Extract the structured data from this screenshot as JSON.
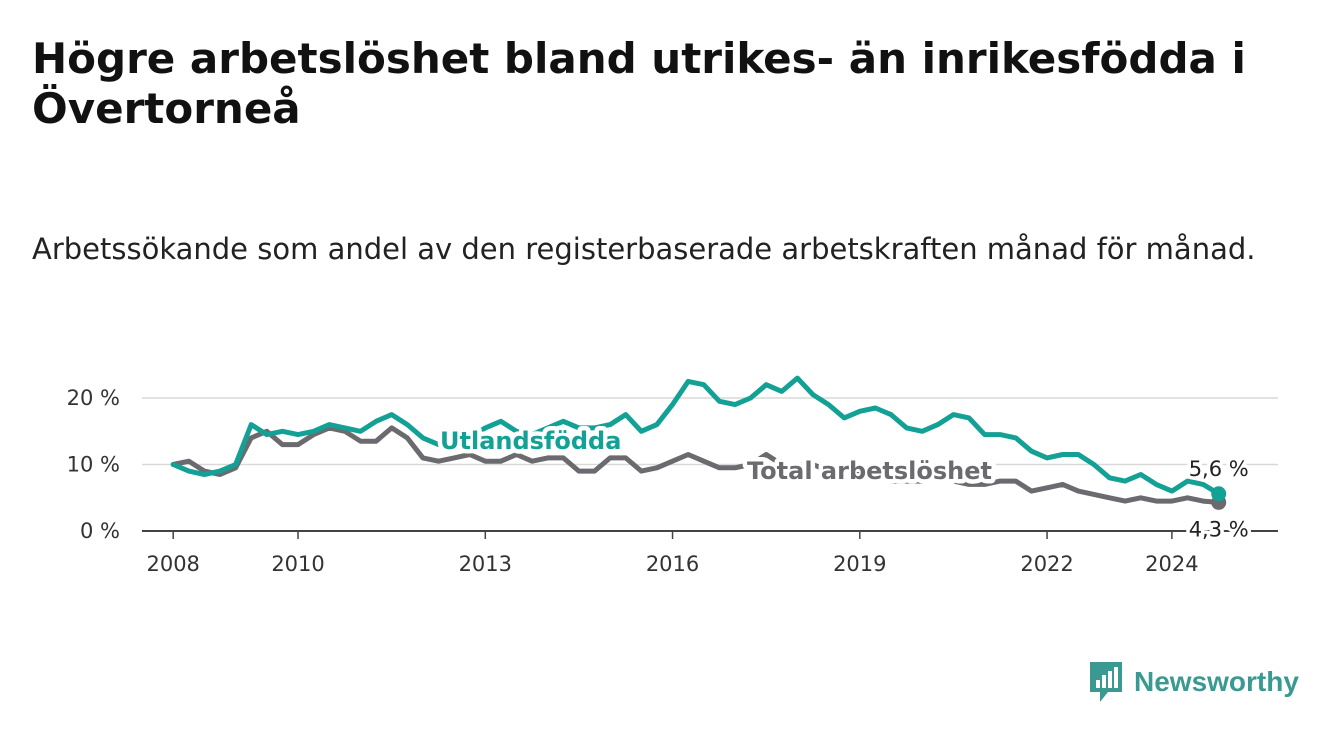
{
  "title": "Högre arbetslöshet bland utrikes- än inrikesfödda i Övertorneå",
  "subtitle": "Arbetssökande som andel av den registerbaserade arbetskraften månad för månad.",
  "brand": {
    "name": "Newsworthy",
    "icon": "bar-chart-speech-bubble-icon"
  },
  "chart_data": {
    "type": "line",
    "x_ticks": [
      "2008",
      "2010",
      "2013",
      "2016",
      "2019",
      "2022",
      "2024"
    ],
    "y_ticks": [
      "0 %",
      "10 %",
      "20 %"
    ],
    "ylim": [
      0,
      20
    ],
    "grid": true,
    "series": [
      {
        "name": "Utlandsfödda",
        "color": "#14a195",
        "end_label": "5,6 %",
        "points": [
          [
            "2008-01",
            10
          ],
          [
            "2008-04",
            9
          ],
          [
            "2008-07",
            8.5
          ],
          [
            "2008-10",
            9
          ],
          [
            "2009-01",
            10
          ],
          [
            "2009-04",
            16
          ],
          [
            "2009-07",
            14.5
          ],
          [
            "2009-10",
            15
          ],
          [
            "2010-01",
            14.5
          ],
          [
            "2010-04",
            15
          ],
          [
            "2010-07",
            16
          ],
          [
            "2010-10",
            15.5
          ],
          [
            "2011-01",
            15
          ],
          [
            "2011-04",
            16.5
          ],
          [
            "2011-07",
            17.5
          ],
          [
            "2011-10",
            16
          ],
          [
            "2012-01",
            14
          ],
          [
            "2012-04",
            13
          ],
          [
            "2012-07",
            13.5
          ],
          [
            "2012-10",
            14
          ],
          [
            "2013-01",
            15.5
          ],
          [
            "2013-04",
            16.5
          ],
          [
            "2013-07",
            15
          ],
          [
            "2013-10",
            14.5
          ],
          [
            "2014-01",
            15.5
          ],
          [
            "2014-04",
            16.5
          ],
          [
            "2014-07",
            15.5
          ],
          [
            "2014-10",
            15.5
          ],
          [
            "2015-01",
            16
          ],
          [
            "2015-04",
            17.5
          ],
          [
            "2015-07",
            15
          ],
          [
            "2015-10",
            16
          ],
          [
            "2016-01",
            19
          ],
          [
            "2016-04",
            22.5
          ],
          [
            "2016-07",
            22
          ],
          [
            "2016-10",
            19.5
          ],
          [
            "2017-01",
            19
          ],
          [
            "2017-04",
            20
          ],
          [
            "2017-07",
            22
          ],
          [
            "2017-10",
            21
          ],
          [
            "2018-01",
            23
          ],
          [
            "2018-04",
            20.5
          ],
          [
            "2018-07",
            19
          ],
          [
            "2018-10",
            17
          ],
          [
            "2019-01",
            18
          ],
          [
            "2019-04",
            18.5
          ],
          [
            "2019-07",
            17.5
          ],
          [
            "2019-10",
            15.5
          ],
          [
            "2020-01",
            15
          ],
          [
            "2020-04",
            16
          ],
          [
            "2020-07",
            17.5
          ],
          [
            "2020-10",
            17
          ],
          [
            "2021-01",
            14.5
          ],
          [
            "2021-04",
            14.5
          ],
          [
            "2021-07",
            14
          ],
          [
            "2021-10",
            12
          ],
          [
            "2022-01",
            11
          ],
          [
            "2022-04",
            11.5
          ],
          [
            "2022-07",
            11.5
          ],
          [
            "2022-10",
            10
          ],
          [
            "2023-01",
            8
          ],
          [
            "2023-04",
            7.5
          ],
          [
            "2023-07",
            8.5
          ],
          [
            "2023-10",
            7
          ],
          [
            "2024-01",
            6
          ],
          [
            "2024-04",
            7.5
          ],
          [
            "2024-07",
            7
          ],
          [
            "2024-10",
            5.6
          ]
        ]
      },
      {
        "name": "Total arbetslöshet",
        "color": "#6a6a6f",
        "end_label": "4,3 %",
        "points": [
          [
            "2008-01",
            10
          ],
          [
            "2008-04",
            10.5
          ],
          [
            "2008-07",
            9
          ],
          [
            "2008-10",
            8.5
          ],
          [
            "2009-01",
            9.5
          ],
          [
            "2009-04",
            14
          ],
          [
            "2009-07",
            15
          ],
          [
            "2009-10",
            13
          ],
          [
            "2010-01",
            13
          ],
          [
            "2010-04",
            14.5
          ],
          [
            "2010-07",
            15.5
          ],
          [
            "2010-10",
            15
          ],
          [
            "2011-01",
            13.5
          ],
          [
            "2011-04",
            13.5
          ],
          [
            "2011-07",
            15.5
          ],
          [
            "2011-10",
            14
          ],
          [
            "2012-01",
            11
          ],
          [
            "2012-04",
            10.5
          ],
          [
            "2012-07",
            11
          ],
          [
            "2012-10",
            11.5
          ],
          [
            "2013-01",
            10.5
          ],
          [
            "2013-04",
            10.5
          ],
          [
            "2013-07",
            11.5
          ],
          [
            "2013-10",
            10.5
          ],
          [
            "2014-01",
            11
          ],
          [
            "2014-04",
            11
          ],
          [
            "2014-07",
            9
          ],
          [
            "2014-10",
            9
          ],
          [
            "2015-01",
            11
          ],
          [
            "2015-04",
            11
          ],
          [
            "2015-07",
            9
          ],
          [
            "2015-10",
            9.5
          ],
          [
            "2016-01",
            10.5
          ],
          [
            "2016-04",
            11.5
          ],
          [
            "2016-07",
            10.5
          ],
          [
            "2016-10",
            9.5
          ],
          [
            "2017-01",
            9.5
          ],
          [
            "2017-04",
            10
          ],
          [
            "2017-07",
            11.5
          ],
          [
            "2017-10",
            10
          ],
          [
            "2018-01",
            10
          ],
          [
            "2018-04",
            10
          ],
          [
            "2018-07",
            9
          ],
          [
            "2018-10",
            8.5
          ],
          [
            "2019-01",
            8.5
          ],
          [
            "2019-04",
            8.5
          ],
          [
            "2019-07",
            7.5
          ],
          [
            "2019-10",
            7.5
          ],
          [
            "2020-01",
            7.5
          ],
          [
            "2020-04",
            8
          ],
          [
            "2020-07",
            7.5
          ],
          [
            "2020-10",
            7
          ],
          [
            "2021-01",
            7
          ],
          [
            "2021-04",
            7.5
          ],
          [
            "2021-07",
            7.5
          ],
          [
            "2021-10",
            6
          ],
          [
            "2022-01",
            6.5
          ],
          [
            "2022-04",
            7
          ],
          [
            "2022-07",
            6
          ],
          [
            "2022-10",
            5.5
          ],
          [
            "2023-01",
            5
          ],
          [
            "2023-04",
            4.5
          ],
          [
            "2023-07",
            5
          ],
          [
            "2023-10",
            4.5
          ],
          [
            "2024-01",
            4.5
          ],
          [
            "2024-04",
            5
          ],
          [
            "2024-07",
            4.5
          ],
          [
            "2024-10",
            4.3
          ]
        ]
      }
    ]
  }
}
